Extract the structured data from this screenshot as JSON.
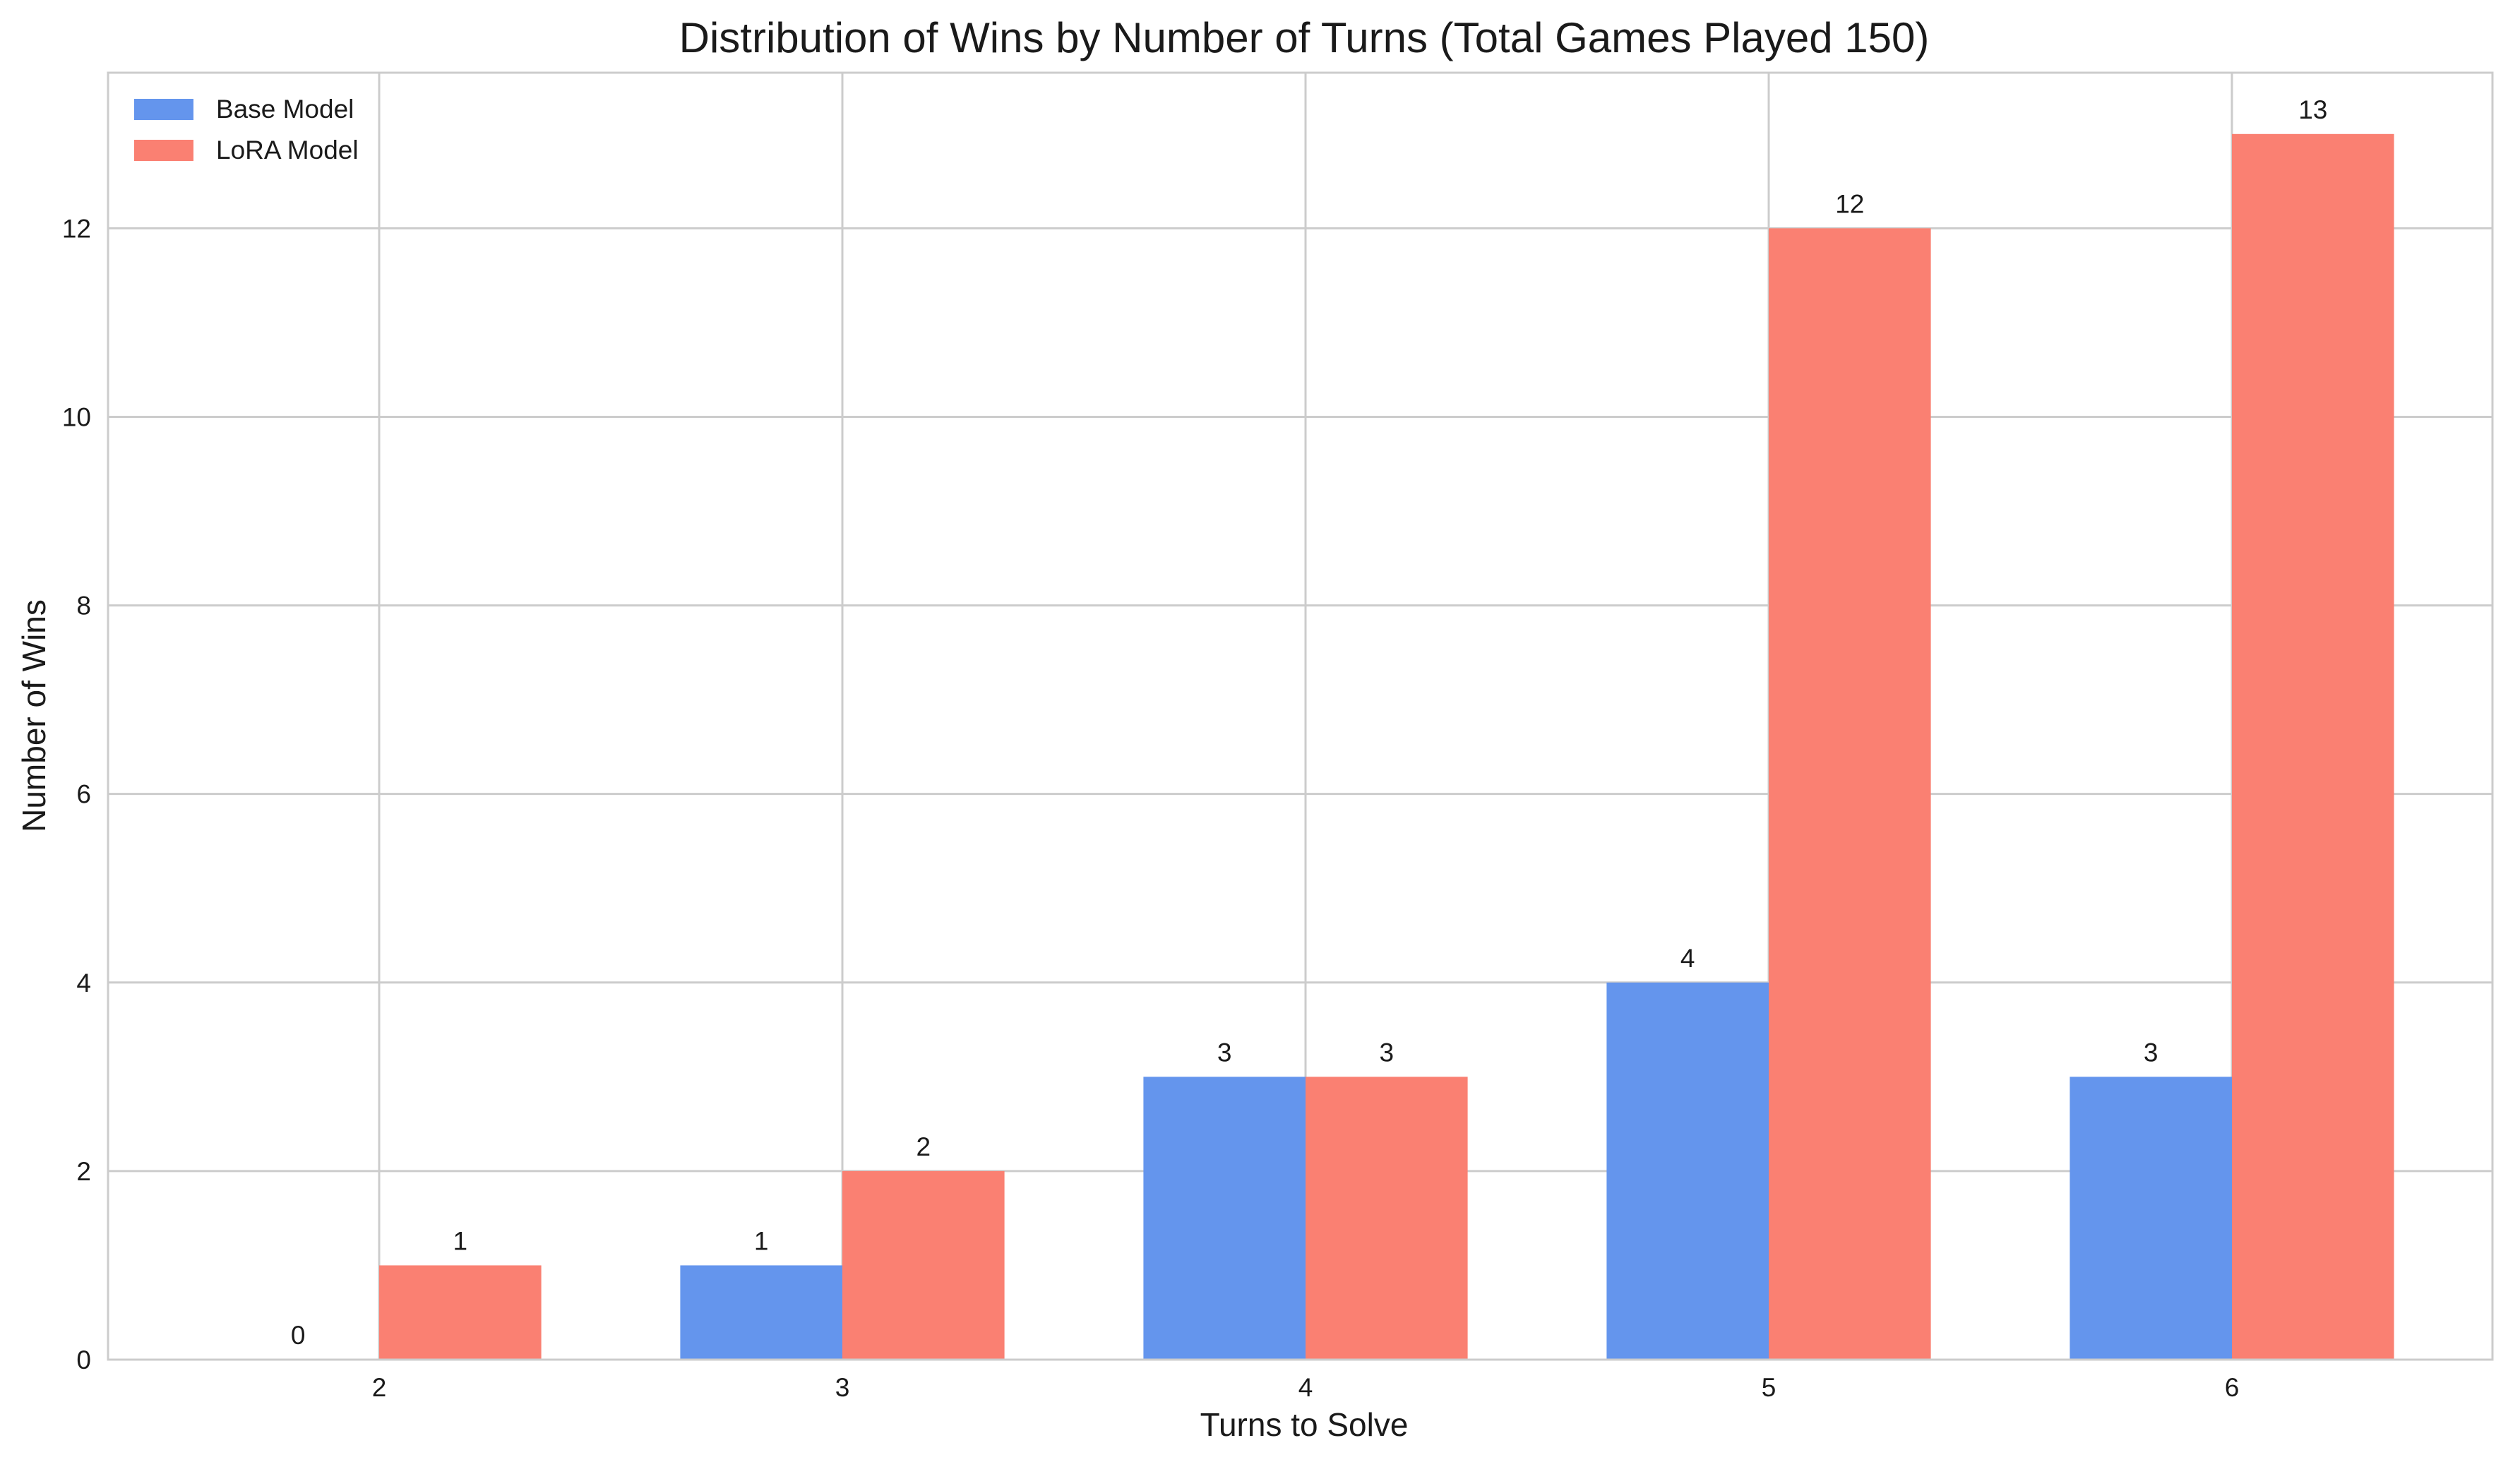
{
  "chart_data": {
    "type": "bar",
    "title": "Distribution of Wins by Number of Turns (Total Games Played 150)",
    "xlabel": "Turns to Solve",
    "ylabel": "Number of Wins",
    "categories": [
      "2",
      "3",
      "4",
      "5",
      "6"
    ],
    "series": [
      {
        "name": "Base Model",
        "values": [
          0,
          1,
          3,
          4,
          3
        ],
        "color": "#6495ED"
      },
      {
        "name": "LoRA Model",
        "values": [
          1,
          2,
          3,
          12,
          13
        ],
        "color": "#FA8072"
      }
    ],
    "yticks": [
      0,
      2,
      4,
      6,
      8,
      10,
      12
    ],
    "ylim": [
      0,
      13.65
    ],
    "grid": true,
    "legend_position": "top-left"
  }
}
